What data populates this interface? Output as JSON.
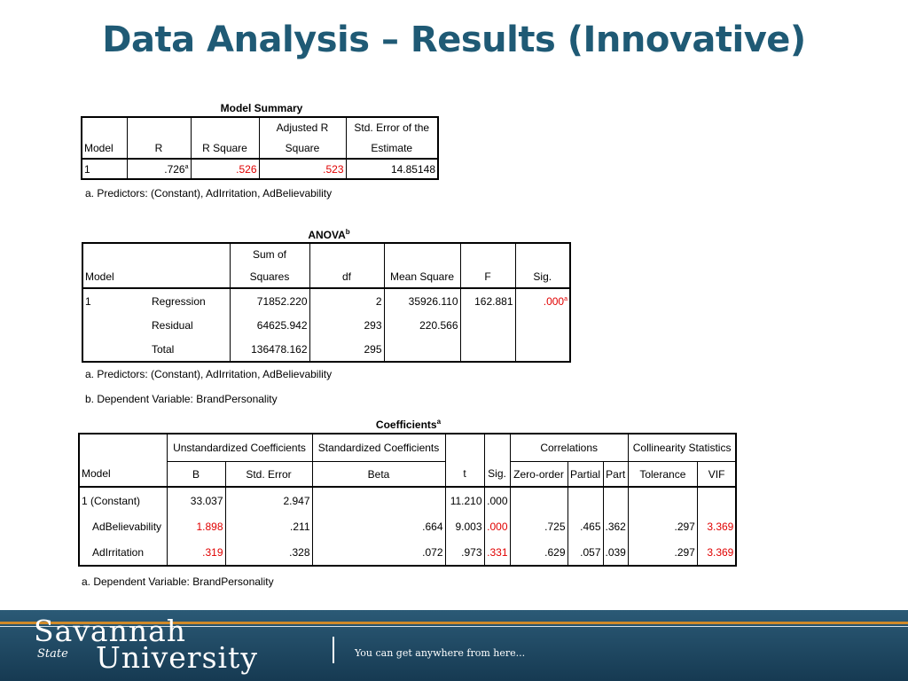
{
  "slide": {
    "title": "Data Analysis – Results (Innovative)"
  },
  "model_summary": {
    "caption": "Model Summary",
    "headers": {
      "model": "Model",
      "r": "R",
      "r_square": "R Square",
      "adj_r_1": "Adjusted R",
      "adj_r_2": "Square",
      "se_1": "Std. Error of the",
      "se_2": "Estimate"
    },
    "row": {
      "model": "1",
      "r": ".726",
      "r_sup": "a",
      "r_square": ".526",
      "adj_r_square": ".523",
      "se": "14.85148"
    },
    "note_a": "a. Predictors: (Constant), AdIrritation, AdBelievability"
  },
  "anova": {
    "caption": "ANOVA",
    "caption_sup": "b",
    "headers": {
      "model": "Model",
      "ss_1": "Sum of",
      "ss_2": "Squares",
      "df": "df",
      "ms": "Mean Square",
      "f": "F",
      "sig": "Sig."
    },
    "model_num": "1",
    "rows": [
      {
        "label": "Regression",
        "ss": "71852.220",
        "df": "2",
        "ms": "35926.110",
        "f": "162.881",
        "sig": ".000",
        "sig_sup": "a"
      },
      {
        "label": "Residual",
        "ss": "64625.942",
        "df": "293",
        "ms": "220.566"
      },
      {
        "label": "Total",
        "ss": "136478.162",
        "df": "295"
      }
    ],
    "note_a": "a. Predictors: (Constant), AdIrritation, AdBelievability",
    "note_b": "b. Dependent Variable: BrandPersonality"
  },
  "coefficients": {
    "caption": "Coefficients",
    "caption_sup": "a",
    "groups": {
      "unstd": "Unstandardized Coefficients",
      "std": "Standardized Coefficients",
      "corr": "Correlations",
      "coll": "Collinearity Statistics"
    },
    "headers": {
      "model": "Model",
      "b": "B",
      "se": "Std. Error",
      "beta": "Beta",
      "t": "t",
      "sig": "Sig.",
      "zero": "Zero-order",
      "partial": "Partial",
      "part": "Part",
      "tol": "Tolerance",
      "vif": "VIF"
    },
    "model_num": "1",
    "rows": [
      {
        "label": "(Constant)",
        "b": "33.037",
        "se": "2.947",
        "t": "11.210",
        "sig": ".000"
      },
      {
        "label": "AdBelievability",
        "b": "1.898",
        "se": ".211",
        "beta": ".664",
        "t": "9.003",
        "sig": ".000",
        "zero": ".725",
        "partial": ".465",
        "part": ".362",
        "tol": ".297",
        "vif": "3.369"
      },
      {
        "label": "AdIrritation",
        "b": ".319",
        "se": ".328",
        "beta": ".072",
        "t": ".973",
        "sig": ".331",
        "zero": ".629",
        "partial": ".057",
        "part": ".039",
        "tol": ".297",
        "vif": "3.369"
      }
    ],
    "note_a": "a. Dependent Variable: BrandPersonality"
  },
  "footer": {
    "logo_line1": "Savannah",
    "logo_state": "State",
    "logo_line2": "University",
    "tagline": "You can get anywhere from here..."
  },
  "colors": {
    "title": "#1f5a75",
    "highlight": "#e00000",
    "footer_bg": "#1f4a66",
    "footer_stripe": "#d08a2a"
  }
}
